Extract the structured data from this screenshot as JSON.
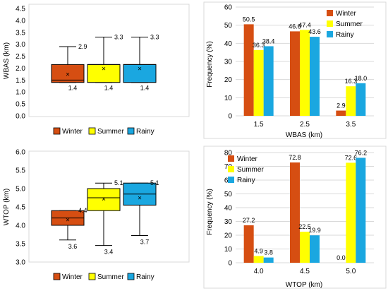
{
  "colors": {
    "winter": "#D64E12",
    "summer": "#FFFF00",
    "rainy": "#1AA7E0"
  },
  "chart_data": [
    {
      "type": "box",
      "ylabel": "WBAS (km)",
      "ylim": [
        0.0,
        4.5
      ],
      "yticks": [
        "0.0",
        "0.5",
        "1.0",
        "1.5",
        "2.0",
        "2.5",
        "3.0",
        "3.5",
        "4.0",
        "4.5"
      ],
      "legend_position": "bottom",
      "series": [
        {
          "name": "Winter",
          "colorKey": "winter",
          "whisker_low": 1.4,
          "q1": 1.4,
          "median": 1.5,
          "q3": 2.15,
          "whisker_high": 2.9,
          "mean": 1.75,
          "label_high": "2.9",
          "label_low": "1.4"
        },
        {
          "name": "Summer",
          "colorKey": "summer",
          "whisker_low": 1.4,
          "q1": 1.4,
          "median": 2.15,
          "q3": 2.15,
          "whisker_high": 3.3,
          "mean": 1.98,
          "label_high": "3.3",
          "label_low": "1.4"
        },
        {
          "name": "Rainy",
          "colorKey": "rainy",
          "whisker_low": 1.4,
          "q1": 1.4,
          "median": 2.15,
          "q3": 2.15,
          "whisker_high": 3.3,
          "mean": 1.98,
          "label_high": "3.3",
          "label_low": "1.4"
        }
      ]
    },
    {
      "type": "bar",
      "xlabel": "WBAS (km)",
      "ylabel": "Frequency (%)",
      "ylim": [
        0,
        60
      ],
      "yticks": [
        "0",
        "10",
        "20",
        "30",
        "40",
        "50",
        "60"
      ],
      "categories": [
        "1.5",
        "2.5",
        "3.5"
      ],
      "legend_position": "top-right",
      "series": [
        {
          "name": "Winter",
          "colorKey": "winter",
          "values": [
            50.5,
            46.6,
            2.9
          ],
          "labels": [
            "50.5",
            "46.6",
            "2.9"
          ]
        },
        {
          "name": "Summer",
          "colorKey": "summer",
          "values": [
            36.3,
            47.4,
            16.3
          ],
          "labels": [
            "36.3",
            "47.4",
            "16.3"
          ]
        },
        {
          "name": "Rainy",
          "colorKey": "rainy",
          "values": [
            38.4,
            43.6,
            18.0
          ],
          "labels": [
            "38.4",
            "43.6",
            "18.0"
          ]
        }
      ]
    },
    {
      "type": "box",
      "ylabel": "WTOP (km)",
      "ylim": [
        3.0,
        6.0
      ],
      "yticks": [
        "3.0",
        "3.5",
        "4.0",
        "4.5",
        "5.0",
        "5.5",
        "6.0"
      ],
      "legend_position": "bottom",
      "series": [
        {
          "name": "Winter",
          "colorKey": "winter",
          "whisker_low": 3.6,
          "q1": 4.0,
          "median": 4.2,
          "q3": 4.4,
          "whisker_high": 4.4,
          "mean": 4.15,
          "label_high": "4.4",
          "label_low": "3.6"
        },
        {
          "name": "Summer",
          "colorKey": "summer",
          "whisker_low": 3.45,
          "q1": 4.4,
          "median": 4.75,
          "q3": 5.0,
          "whisker_high": 5.15,
          "mean": 4.72,
          "label_high": "5.1",
          "label_low": "3.4"
        },
        {
          "name": "Rainy",
          "colorKey": "rainy",
          "whisker_low": 3.72,
          "q1": 4.55,
          "median": 4.85,
          "q3": 5.15,
          "whisker_high": 5.15,
          "mean": 4.75,
          "label_high": "5.1",
          "label_low": "3.7"
        }
      ]
    },
    {
      "type": "bar",
      "xlabel": "WTOP (km)",
      "ylabel": "Frequency (%)",
      "ylim": [
        0,
        80
      ],
      "yticks": [
        "0",
        "10",
        "20",
        "30",
        "40",
        "50",
        "60",
        "70",
        "80"
      ],
      "categories": [
        "4.0",
        "4.5",
        "5.0"
      ],
      "legend_position": "top-left",
      "series": [
        {
          "name": "Winter",
          "colorKey": "winter",
          "values": [
            27.2,
            72.8,
            0.0
          ],
          "labels": [
            "27.2",
            "72.8",
            "0.0"
          ]
        },
        {
          "name": "Summer",
          "colorKey": "summer",
          "values": [
            4.9,
            22.5,
            72.6
          ],
          "labels": [
            "4.9",
            "22.5",
            "72.6"
          ]
        },
        {
          "name": "Rainy",
          "colorKey": "rainy",
          "values": [
            3.8,
            19.9,
            76.2
          ],
          "labels": [
            "3.8",
            "19.9",
            "76.2"
          ]
        }
      ]
    }
  ]
}
